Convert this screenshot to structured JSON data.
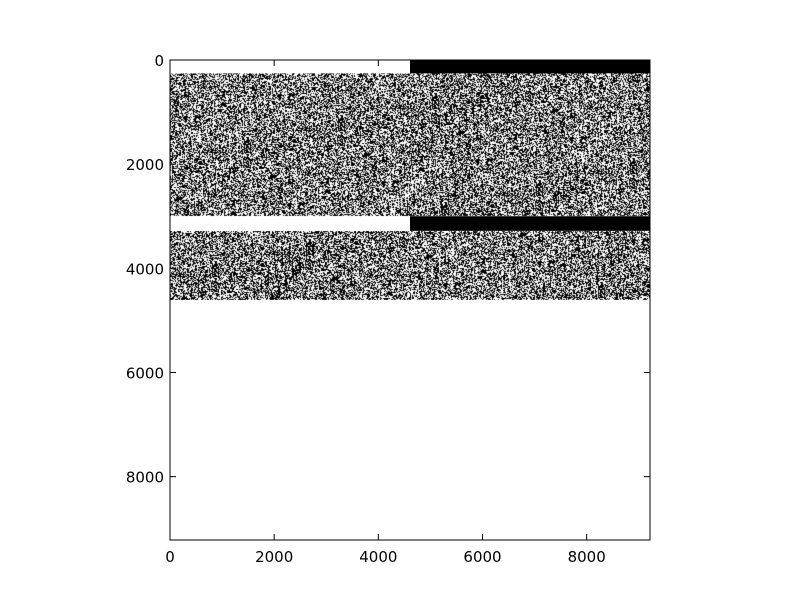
{
  "chart_data": {
    "type": "heatmap",
    "title": "",
    "xlabel": "",
    "ylabel": "",
    "colormap": [
      "#000000",
      "#ffffff"
    ],
    "xlim": [
      0,
      9216
    ],
    "ylim": [
      9216,
      0
    ],
    "x_origin": "left",
    "y_origin": "top",
    "xticks": [
      0,
      2000,
      4000,
      6000,
      8000
    ],
    "yticks": [
      0,
      2000,
      4000,
      6000,
      8000
    ],
    "xtick_labels": [
      "0",
      "2000",
      "4000",
      "6000",
      "8000"
    ],
    "ytick_labels": [
      "0",
      "2000",
      "4000",
      "6000",
      "8000"
    ],
    "grid": false,
    "legend": "none",
    "regions": [
      {
        "name": "header-band-left",
        "x": [
          0,
          4608
        ],
        "y": [
          0,
          256
        ],
        "fill": "white"
      },
      {
        "name": "header-band-right",
        "x": [
          4608,
          9216
        ],
        "y": [
          0,
          256
        ],
        "fill": "black"
      },
      {
        "name": "noise-block-upper",
        "x": [
          0,
          9216
        ],
        "y": [
          256,
          3000
        ],
        "fill": "noise",
        "density": 0.5
      },
      {
        "name": "divider-left",
        "x": [
          0,
          4608
        ],
        "y": [
          3000,
          3280
        ],
        "fill": "white"
      },
      {
        "name": "divider-right",
        "x": [
          4608,
          9216
        ],
        "y": [
          3000,
          3280
        ],
        "fill": "black"
      },
      {
        "name": "noise-block-lower",
        "x": [
          0,
          9216
        ],
        "y": [
          3280,
          4608
        ],
        "fill": "noise",
        "density": 0.5
      },
      {
        "name": "blank-area",
        "x": [
          0,
          9216
        ],
        "y": [
          4608,
          9216
        ],
        "fill": "white"
      }
    ]
  }
}
